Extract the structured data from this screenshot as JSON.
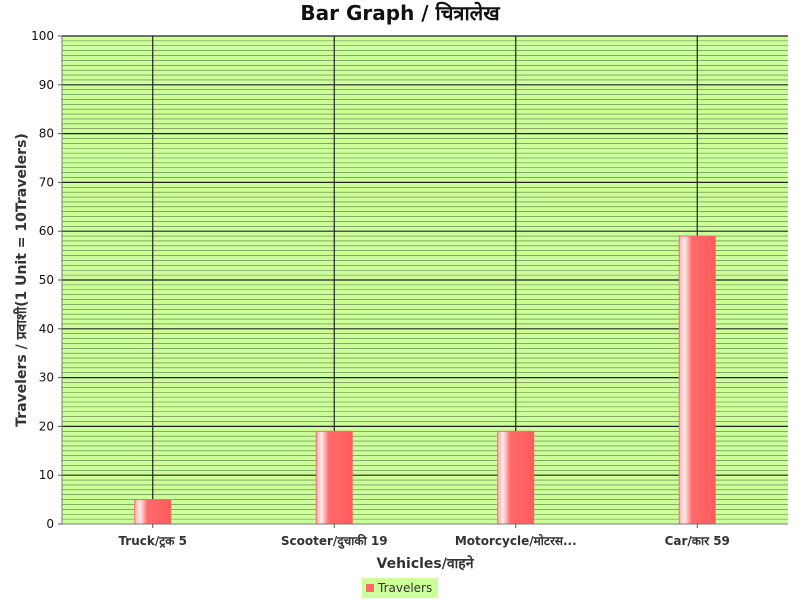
{
  "chart_data": {
    "type": "bar",
    "title": "Bar Graph / चित्रालेख",
    "xlabel": "Vehicles/वाहने",
    "ylabel": "Travelers / प्रवाशी(1 Unit = 10Travelers)",
    "categories": [
      "Truck/ट्रक 5",
      "Scooter/दुचाकी 19",
      "Motorcycle/मोटरस...",
      "Car/कार 59"
    ],
    "series": [
      {
        "name": "Travelers",
        "values": [
          5,
          19,
          19,
          59
        ]
      }
    ],
    "ylim": [
      0,
      100
    ],
    "yticks": [
      "0",
      "10",
      "20",
      "30",
      "40",
      "50",
      "60",
      "70",
      "80",
      "90",
      "100"
    ],
    "grid": true,
    "legend_position": "bottom",
    "colors": {
      "plot_background": "#ccff99",
      "bar": "#ff6666",
      "bar_highlight": "#ffd6d6",
      "grid": "#222222",
      "legend_background": "#ccff99"
    }
  }
}
